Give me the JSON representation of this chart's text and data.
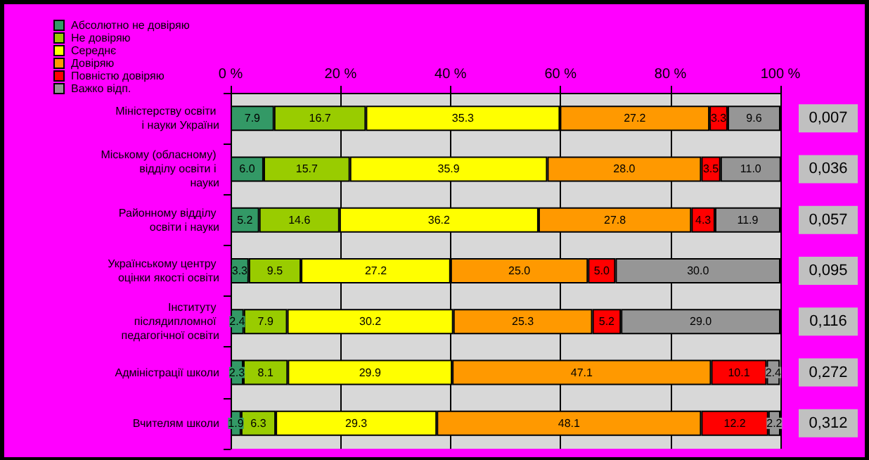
{
  "chart_data": {
    "type": "bar",
    "orientation": "horizontal",
    "stacked": true,
    "categories": [
      "Міністерству освіти і науки України",
      "Міському (обласному) відділу освіти і науки",
      "Районному відділу освіти і науки",
      "Українському центру оцінки якості освіти",
      "Інституту післядипломної педагогічної освіти",
      "Адміністрації школи",
      "Вчителям школи"
    ],
    "series": [
      {
        "name": "Абсолютно не довіряю",
        "color": "#339966",
        "values": [
          7.9,
          6.0,
          5.2,
          3.3,
          2.4,
          2.3,
          1.9
        ],
        "value_labels": [
          "7.9",
          "6.0",
          "5.2",
          "3.3",
          "2.4",
          "2.3",
          "1.9"
        ]
      },
      {
        "name": "Не довіряю",
        "color": "#99cc00",
        "values": [
          16.7,
          15.7,
          14.6,
          9.5,
          7.9,
          8.1,
          6.3
        ],
        "value_labels": [
          "16.7",
          "15.7",
          "14.6",
          "9.5",
          "7.9",
          "8.1",
          "6.3"
        ]
      },
      {
        "name": "Середнє",
        "color": "#ffff00",
        "values": [
          35.3,
          35.9,
          36.2,
          27.2,
          30.2,
          29.9,
          29.3
        ],
        "value_labels": [
          "35.3",
          "35.9",
          "36.2",
          "27.2",
          "30.2",
          "29.9",
          "29.3"
        ]
      },
      {
        "name": "Довіряю",
        "color": "#ff9900",
        "values": [
          27.2,
          28.0,
          27.8,
          25.0,
          25.3,
          47.1,
          48.1
        ],
        "value_labels": [
          "27.2",
          "28.0",
          "27.8",
          "25.0",
          "25.3",
          "47.1",
          "48.1"
        ]
      },
      {
        "name": "Повністю довіряю",
        "color": "#ff0000",
        "values": [
          3.3,
          3.5,
          4.3,
          5.0,
          5.2,
          10.1,
          12.2
        ],
        "value_labels": [
          "3.3",
          "3.5",
          "4.3",
          "5.0",
          "5.2",
          "10.1",
          "12.2"
        ]
      },
      {
        "name": "Важко відп.",
        "color": "#969696",
        "values": [
          9.6,
          11.0,
          11.9,
          30.0,
          29.0,
          2.4,
          2.2
        ],
        "value_labels": [
          "9.6",
          "11.0",
          "11.9",
          "30.0",
          "29.0",
          "2.4",
          "2.2"
        ]
      }
    ],
    "xlim": [
      0,
      100
    ],
    "xticks": [
      {
        "value": 0,
        "label": "0 %"
      },
      {
        "value": 20,
        "label": "20 %"
      },
      {
        "value": 40,
        "label": "40 %"
      },
      {
        "value": 60,
        "label": "60 %"
      },
      {
        "value": 80,
        "label": "80 %"
      },
      {
        "value": 100,
        "label": "100 %"
      }
    ],
    "annotations": [
      "0,007",
      "0,036",
      "0,057",
      "0,095",
      "0,116",
      "0,272",
      "0,312"
    ],
    "grid": "x",
    "legend": "top left"
  }
}
